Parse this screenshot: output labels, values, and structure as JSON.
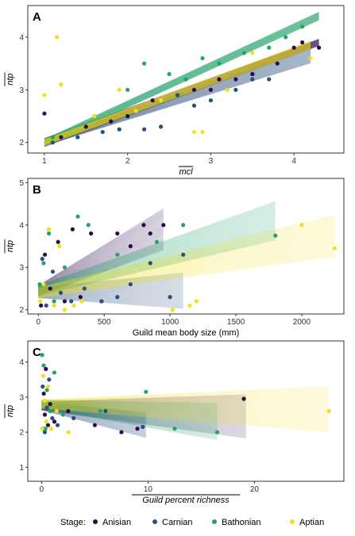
{
  "legend": {
    "title": "Stage:",
    "items": [
      {
        "label": "Anisian",
        "color": "#2d0a4f"
      },
      {
        "label": "Carnian",
        "color": "#2a4f7a"
      },
      {
        "label": "Bathonian",
        "color": "#22a36b"
      },
      {
        "label": "Aptian",
        "color": "#f0e020"
      }
    ]
  },
  "chart_data": [
    {
      "panel": "A",
      "type": "scatter",
      "xlabel": "mcl",
      "ylabel": "ntp",
      "overline_labels": true,
      "xlim": [
        0.8,
        4.6
      ],
      "ylim": [
        1.8,
        4.6
      ],
      "xticks": [
        "1",
        "2",
        "3",
        "4"
      ],
      "yticks": [
        "2",
        "3",
        "4"
      ],
      "xtick_values": [
        1,
        2,
        3,
        4
      ],
      "ytick_values": [
        2,
        3,
        4
      ],
      "grid": false,
      "series": [
        {
          "name": "Anisian",
          "x": [
            1.0,
            1.2,
            1.5,
            1.8,
            2.0,
            2.3,
            2.6,
            2.8,
            3.0,
            3.1,
            3.3,
            3.5,
            3.8,
            4.0,
            4.1,
            4.3
          ],
          "y": [
            2.55,
            2.1,
            2.3,
            2.4,
            2.5,
            2.8,
            2.9,
            3.0,
            3.0,
            3.2,
            3.2,
            3.3,
            3.5,
            3.8,
            3.9,
            3.8
          ],
          "fit": {
            "x0": 1.0,
            "x1": 4.3,
            "y0": 2.0,
            "y1": 3.9,
            "spread_lo": 0.08,
            "spread_hi": 0.1
          }
        },
        {
          "name": "Carnian",
          "x": [
            1.1,
            1.4,
            1.7,
            1.9,
            2.2,
            2.4,
            2.6,
            2.8,
            3.0,
            3.3,
            3.5,
            3.7
          ],
          "y": [
            2.0,
            2.1,
            2.2,
            2.25,
            2.25,
            2.3,
            2.9,
            2.7,
            2.8,
            3.0,
            3.2,
            3.2
          ],
          "fit": {
            "x0": 1.0,
            "x1": 4.2,
            "y0": 2.0,
            "y1": 3.65,
            "spread_lo": 0.06,
            "spread_hi": 0.22
          }
        },
        {
          "name": "Bathonian",
          "x": [
            1.1,
            1.6,
            2.0,
            2.2,
            2.5,
            2.7,
            2.9,
            3.1,
            3.4,
            3.7,
            3.9,
            4.1
          ],
          "y": [
            2.1,
            2.5,
            3.0,
            3.5,
            3.3,
            3.2,
            3.6,
            3.5,
            3.7,
            3.8,
            4.0,
            4.2
          ],
          "fit": {
            "x0": 1.0,
            "x1": 4.3,
            "y0": 2.0,
            "y1": 4.4,
            "spread_lo": 0.06,
            "spread_hi": 0.12
          }
        },
        {
          "name": "Aptian",
          "x": [
            1.0,
            1.15,
            1.2,
            1.6,
            1.9,
            2.1,
            2.4,
            2.8,
            2.9,
            3.2,
            3.5,
            4.2
          ],
          "y": [
            2.9,
            4.0,
            3.1,
            2.5,
            3.0,
            2.6,
            2.8,
            2.2,
            2.2,
            3.0,
            3.7,
            3.6
          ],
          "fit": {
            "x0": 1.0,
            "x1": 4.2,
            "y0": 2.0,
            "y1": 3.85,
            "spread_lo": 0.06,
            "spread_hi": 0.12
          }
        }
      ]
    },
    {
      "panel": "B",
      "type": "scatter",
      "xlabel": "Guild mean body size (mm)",
      "ylabel": "ntp",
      "overline_labels": false,
      "xlim": [
        -80,
        2320
      ],
      "ylim": [
        1.9,
        5.1
      ],
      "xticks": [
        "0",
        "500",
        "1000",
        "1500",
        "2000"
      ],
      "yticks": [
        "2",
        "3",
        "4",
        "5"
      ],
      "xtick_values": [
        0,
        500,
        1000,
        1500,
        2000
      ],
      "ytick_values": [
        2,
        3,
        4,
        5
      ],
      "grid": false,
      "series": [
        {
          "name": "Anisian",
          "x": [
            20,
            50,
            90,
            150,
            200,
            260,
            320,
            400,
            480,
            600,
            700,
            800,
            850,
            950
          ],
          "y": [
            2.1,
            3.3,
            2.5,
            3.6,
            2.2,
            3.9,
            2.3,
            3.8,
            2.2,
            3.8,
            3.5,
            4.0,
            3.8,
            4.0
          ],
          "fit": {
            "x0": 0,
            "x1": 950,
            "y0": 2.45,
            "y1": 3.9,
            "spread_lo": 0.12,
            "spread_hi": 0.75
          }
        },
        {
          "name": "Carnian",
          "x": [
            30,
            60,
            110,
            170,
            250,
            350,
            480,
            600,
            700,
            850,
            1000,
            1100
          ],
          "y": [
            3.2,
            2.1,
            2.9,
            2.4,
            2.2,
            2.5,
            2.2,
            2.3,
            2.6,
            3.1,
            2.3,
            3.3
          ],
          "fit": {
            "x0": 0,
            "x1": 1100,
            "y0": 2.4,
            "y1": 2.45,
            "spread_lo": 0.12,
            "spread_hi": 0.65
          }
        },
        {
          "name": "Bathonian",
          "x": [
            10,
            40,
            80,
            120,
            200,
            300,
            380,
            600,
            900,
            1100,
            1800
          ],
          "y": [
            2.6,
            3.1,
            3.8,
            2.2,
            3.0,
            4.2,
            4.0,
            3.3,
            3.6,
            4.0,
            3.75
          ],
          "fit": {
            "x0": 0,
            "x1": 1800,
            "y0": 2.45,
            "y1": 4.1,
            "spread_lo": 0.12,
            "spread_hi": 0.7
          }
        },
        {
          "name": "Aptian",
          "x": [
            15,
            40,
            80,
            120,
            160,
            200,
            270,
            330,
            1020,
            1150,
            1200,
            2000,
            2250
          ],
          "y": [
            2.2,
            2.6,
            3.9,
            2.1,
            3.5,
            2.0,
            2.1,
            2.2,
            2.0,
            2.1,
            2.2,
            4.0,
            3.45
          ],
          "fit": {
            "x0": 0,
            "x1": 2250,
            "y0": 2.4,
            "y1": 3.75,
            "spread_lo": 0.12,
            "spread_hi": 0.75
          }
        }
      ]
    },
    {
      "panel": "C",
      "type": "scatter",
      "xlabel": "Guild percent richness",
      "ylabel": "ntp",
      "overline_labels": true,
      "xlim": [
        -1.3,
        28.4
      ],
      "ylim": [
        0.6,
        4.6
      ],
      "xticks": [
        "0",
        "10",
        "20"
      ],
      "yticks": [
        "1",
        "2",
        "3",
        "4"
      ],
      "xtick_values": [
        0,
        10,
        20
      ],
      "ytick_values": [
        1,
        2,
        3,
        4
      ],
      "grid": false,
      "series": [
        {
          "name": "Anisian",
          "x": [
            0.1,
            0.2,
            0.3,
            0.4,
            0.6,
            0.8,
            1.2,
            2.5,
            5.0,
            7.5,
            9.0,
            19.0
          ],
          "y": [
            2.1,
            3.1,
            2.5,
            3.8,
            2.2,
            2.8,
            2.3,
            2.6,
            2.2,
            2.0,
            2.1,
            2.95
          ],
          "fit": {
            "x0": 0,
            "x1": 19.2,
            "y0": 2.75,
            "y1": 2.45,
            "spread_lo": 0.12,
            "spread_hi": 0.95
          }
        },
        {
          "name": "Carnian",
          "x": [
            0.1,
            0.3,
            0.5,
            0.7,
            1.0,
            1.5,
            3.0,
            6.0,
            9.5
          ],
          "y": [
            3.3,
            2.0,
            2.7,
            3.5,
            2.4,
            2.2,
            2.4,
            2.6,
            2.15
          ],
          "fit": {
            "x0": 0,
            "x1": 9.8,
            "y0": 2.75,
            "y1": 2.2,
            "spread_lo": 0.12,
            "spread_hi": 0.55
          }
        },
        {
          "name": "Bathonian",
          "x": [
            0.05,
            0.2,
            0.35,
            0.5,
            0.8,
            1.2,
            2.0,
            5.5,
            9.8,
            12.5,
            16.5
          ],
          "y": [
            4.2,
            3.9,
            2.1,
            3.2,
            2.6,
            3.7,
            2.5,
            2.6,
            3.15,
            2.1,
            2.0
          ],
          "fit": {
            "x0": 0,
            "x1": 16.5,
            "y0": 2.8,
            "y1": 2.3,
            "spread_lo": 0.12,
            "spread_hi": 0.8
          }
        },
        {
          "name": "Aptian",
          "x": [
            0.05,
            0.15,
            0.3,
            0.45,
            0.6,
            0.9,
            1.4,
            2.5,
            27.0
          ],
          "y": [
            2.1,
            3.6,
            2.9,
            2.3,
            3.3,
            2.1,
            2.6,
            2.0,
            2.6
          ],
          "fit": {
            "x0": 0,
            "x1": 27.0,
            "y0": 2.8,
            "y1": 2.65,
            "spread_lo": 0.12,
            "spread_hi": 1.0
          }
        }
      ]
    }
  ]
}
